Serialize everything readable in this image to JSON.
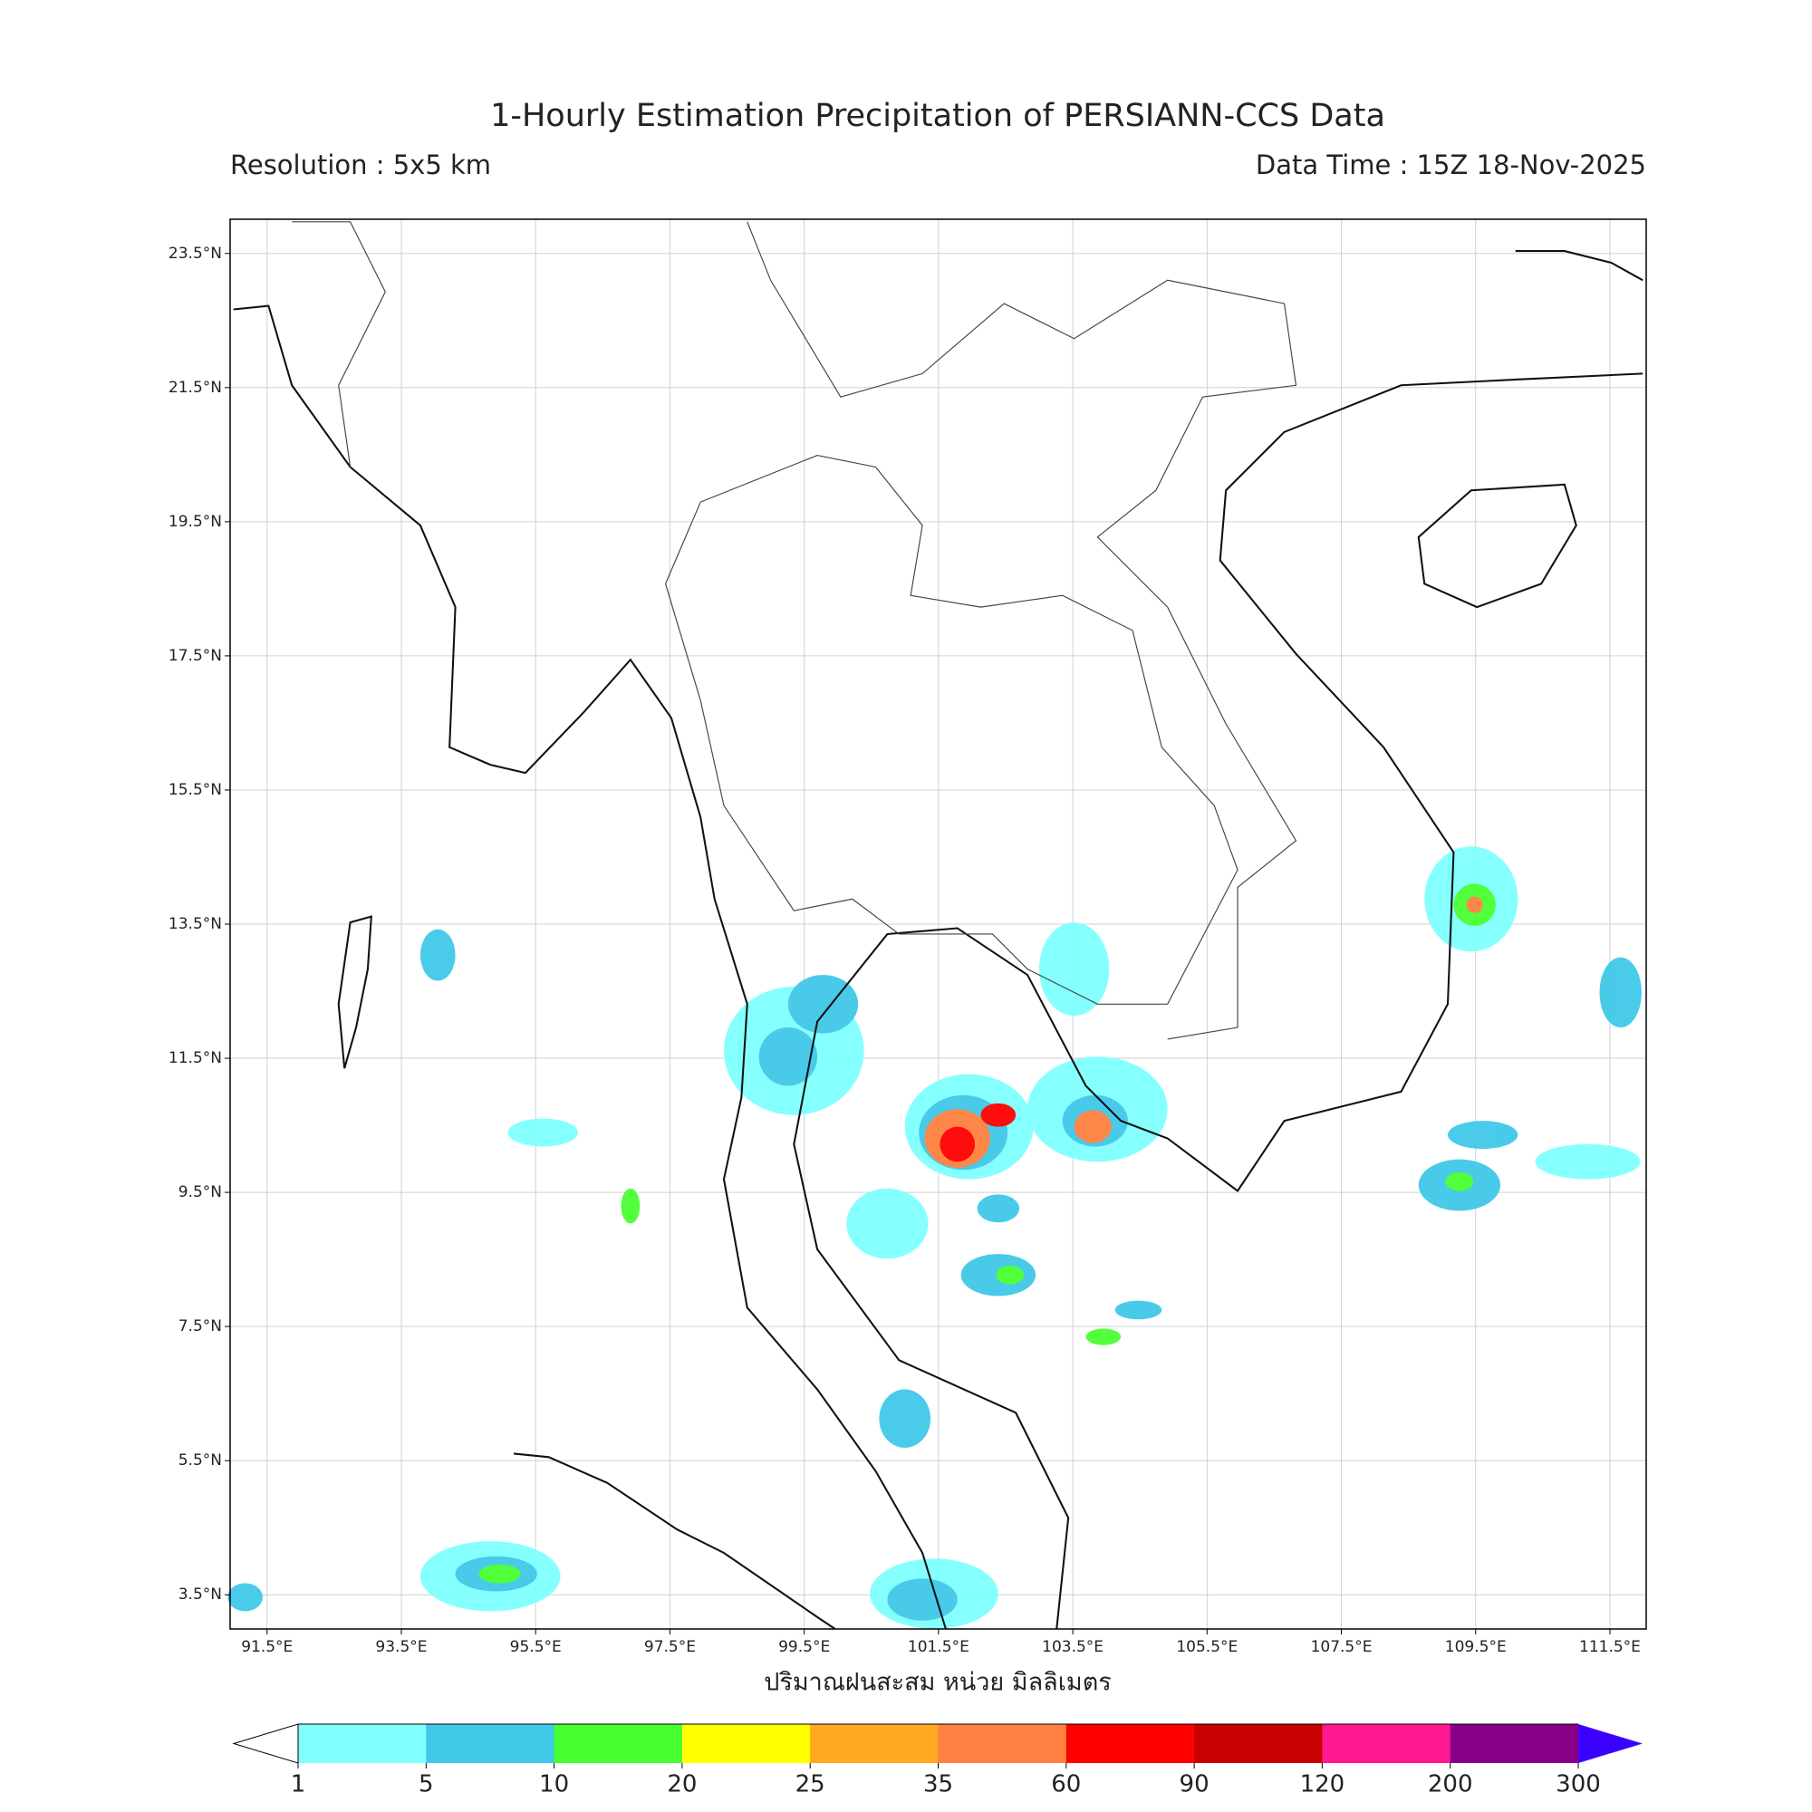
{
  "header": {
    "title": "1-Hourly Estimation Precipitation of PERSIANN-CCS Data",
    "resolution": "Resolution : 5x5 km",
    "data_time": "Data Time : 15Z 18-Nov-2025"
  },
  "map": {
    "xlim": [
      90.95,
      112.04
    ],
    "ylim": [
      2.99,
      24.01
    ],
    "xticks": [
      {
        "value": 91.5,
        "label": "91.5°E"
      },
      {
        "value": 93.5,
        "label": "93.5°E"
      },
      {
        "value": 95.5,
        "label": "95.5°E"
      },
      {
        "value": 97.5,
        "label": "97.5°E"
      },
      {
        "value": 99.5,
        "label": "99.5°E"
      },
      {
        "value": 101.5,
        "label": "101.5°E"
      },
      {
        "value": 103.5,
        "label": "103.5°E"
      },
      {
        "value": 105.5,
        "label": "105.5°E"
      },
      {
        "value": 107.5,
        "label": "107.5°E"
      },
      {
        "value": 109.5,
        "label": "109.5°E"
      },
      {
        "value": 111.5,
        "label": "111.5°E"
      }
    ],
    "yticks": [
      {
        "value": 3.5,
        "label": "3.5°N"
      },
      {
        "value": 5.5,
        "label": "5.5°N"
      },
      {
        "value": 7.5,
        "label": "7.5°N"
      },
      {
        "value": 9.5,
        "label": "9.5°N"
      },
      {
        "value": 11.5,
        "label": "11.5°N"
      },
      {
        "value": 13.5,
        "label": "13.5°N"
      },
      {
        "value": 15.5,
        "label": "15.5°N"
      },
      {
        "value": 17.5,
        "label": "17.5°N"
      },
      {
        "value": 19.5,
        "label": "19.5°N"
      },
      {
        "value": 21.5,
        "label": "21.5°N"
      },
      {
        "value": 23.5,
        "label": "23.5°N"
      }
    ],
    "x_label": "ปริมาณฝนสะสม หน่วย มิลลิเมตร"
  },
  "colorbar": {
    "levels": [
      1,
      5,
      10,
      20,
      25,
      35,
      60,
      90,
      120,
      200,
      300
    ],
    "colors": [
      "#80ffff",
      "#40c8e8",
      "#48ff30",
      "#ffff00",
      "#ffa820",
      "#ff8040",
      "#ff0000",
      "#c80000",
      "#ff1890",
      "#880088"
    ],
    "under_color": "#ffffff",
    "over_color": "#3c00ff"
  }
}
